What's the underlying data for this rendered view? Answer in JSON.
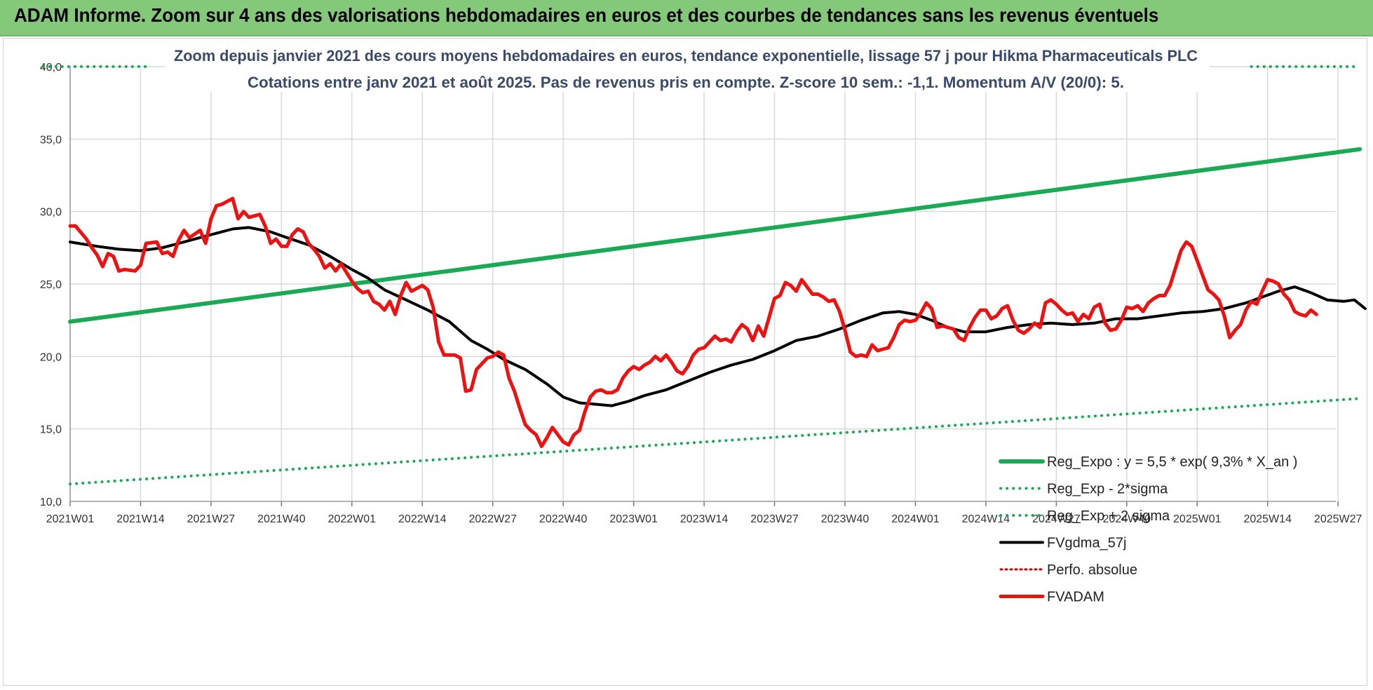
{
  "banner": {
    "title": "ADAM Informe. Zoom sur 4 ans des valorisations hebdomadaires en euros et des courbes de tendances sans les revenus éventuels"
  },
  "colors": {
    "trend": "#1aaa55",
    "smooth": "#000000",
    "price": "#ee1111",
    "perf": "#cc0000",
    "title_text": "#3a4a6b",
    "grid": "#d9d9d9",
    "banner": "#84c97a"
  },
  "chart_data": {
    "type": "line",
    "title": "Zoom depuis janvier 2021 des cours moyens hebdomadaires en euros, tendance exponentielle, lissage 57 j pour Hikma Pharmaceuticals PLC",
    "subtitle": "Cotations entre janv 2021 et août 2025.  Pas de revenus pris en compte. Z-score 10 sem.: -1,1. Momentum A/V (20/0): 5.",
    "xlabel": "",
    "ylabel": "",
    "ylim": [
      10,
      40
    ],
    "yticks": [
      "10,0",
      "15,0",
      "20,0",
      "25,0",
      "30,0",
      "35,0",
      "40,0"
    ],
    "xticks": [
      "2021W01",
      "2021W14",
      "2021W27",
      "2021W40",
      "2022W01",
      "2022W14",
      "2022W27",
      "2022W40",
      "2023W01",
      "2023W14",
      "2023W27",
      "2023W40",
      "2024W01",
      "2024W14",
      "2024W27",
      "2024W40",
      "2025W01",
      "2025W14",
      "2025W27"
    ],
    "grid": true,
    "legend_position": "bottom-right",
    "n_weeks": 239,
    "legend": [
      "Reg_Expo : y = 5,5 * exp( 9,3% *  X_an )",
      "Reg_Exp - 2*sigma",
      "Reg_Exp + 2 sigma",
      "FVgdma_57j",
      "Perfo. absolue",
      "FVADAM"
    ],
    "series": [
      {
        "name": "Reg_Expo : y = 5,5 * exp( 9,3% *  X_an )",
        "style": "solid",
        "points": [
          [
            0,
            22.4
          ],
          [
            238,
            34.3
          ]
        ]
      },
      {
        "name": "Reg_Exp - 2*sigma",
        "style": "dotted",
        "points": [
          [
            0,
            11.2
          ],
          [
            238,
            17.1
          ]
        ]
      },
      {
        "name": "Reg_Exp + 2 sigma",
        "style": "dotted",
        "points": [
          [
            0,
            40.0
          ],
          [
            238,
            40.0
          ]
        ]
      },
      {
        "name": "FVgdma_57j",
        "style": "solid",
        "points": [
          [
            0,
            27.9
          ],
          [
            5,
            27.6
          ],
          [
            9,
            27.4
          ],
          [
            13,
            27.3
          ],
          [
            17,
            27.5
          ],
          [
            21,
            27.9
          ],
          [
            26,
            28.4
          ],
          [
            30,
            28.8
          ],
          [
            33,
            28.9
          ],
          [
            37,
            28.6
          ],
          [
            40,
            28.2
          ],
          [
            44,
            27.7
          ],
          [
            48,
            26.9
          ],
          [
            52,
            26.0
          ],
          [
            55,
            25.4
          ],
          [
            58,
            24.6
          ],
          [
            62,
            23.9
          ],
          [
            66,
            23.2
          ],
          [
            70,
            22.4
          ],
          [
            74,
            21.1
          ],
          [
            77,
            20.5
          ],
          [
            80,
            19.8
          ],
          [
            84,
            19.1
          ],
          [
            88,
            18.1
          ],
          [
            91,
            17.2
          ],
          [
            94,
            16.8
          ],
          [
            97,
            16.7
          ],
          [
            100,
            16.6
          ],
          [
            103,
            16.9
          ],
          [
            106,
            17.3
          ],
          [
            110,
            17.7
          ],
          [
            114,
            18.3
          ],
          [
            118,
            18.9
          ],
          [
            122,
            19.4
          ],
          [
            126,
            19.8
          ],
          [
            130,
            20.4
          ],
          [
            134,
            21.1
          ],
          [
            138,
            21.4
          ],
          [
            142,
            21.9
          ],
          [
            146,
            22.5
          ],
          [
            150,
            23.0
          ],
          [
            153,
            23.1
          ],
          [
            156,
            22.9
          ],
          [
            159,
            22.5
          ],
          [
            162,
            22.0
          ],
          [
            165,
            21.7
          ],
          [
            169,
            21.7
          ],
          [
            173,
            22.0
          ],
          [
            177,
            22.2
          ],
          [
            181,
            22.3
          ],
          [
            185,
            22.2
          ],
          [
            189,
            22.3
          ],
          [
            193,
            22.6
          ],
          [
            197,
            22.6
          ],
          [
            201,
            22.8
          ],
          [
            205,
            23.0
          ],
          [
            209,
            23.1
          ],
          [
            213,
            23.3
          ],
          [
            217,
            23.7
          ],
          [
            220,
            24.1
          ],
          [
            223,
            24.5
          ],
          [
            226,
            24.8
          ],
          [
            229,
            24.4
          ],
          [
            232,
            23.9
          ],
          [
            235,
            23.8
          ],
          [
            237,
            23.9
          ],
          [
            239,
            23.3
          ]
        ]
      },
      {
        "name": "Perfo. absolue",
        "style": "dotted",
        "points": []
      },
      {
        "name": "FVADAM",
        "style": "solid",
        "points": [
          [
            0,
            29.0
          ],
          [
            1,
            29.0
          ],
          [
            3,
            28.1
          ],
          [
            4,
            27.5
          ],
          [
            5,
            27.0
          ],
          [
            6,
            26.2
          ],
          [
            7,
            27.1
          ],
          [
            8,
            26.9
          ],
          [
            9,
            25.9
          ],
          [
            10,
            26.0
          ],
          [
            12,
            25.9
          ],
          [
            13,
            26.3
          ],
          [
            14,
            27.8
          ],
          [
            16,
            27.9
          ],
          [
            17,
            27.1
          ],
          [
            18,
            27.2
          ],
          [
            19,
            26.9
          ],
          [
            20,
            28.0
          ],
          [
            21,
            28.7
          ],
          [
            22,
            28.2
          ],
          [
            24,
            28.7
          ],
          [
            25,
            27.8
          ],
          [
            26,
            29.5
          ],
          [
            27,
            30.4
          ],
          [
            28,
            30.5
          ],
          [
            29,
            30.7
          ],
          [
            30,
            30.9
          ],
          [
            31,
            29.5
          ],
          [
            32,
            30.0
          ],
          [
            33,
            29.6
          ],
          [
            35,
            29.8
          ],
          [
            36,
            29.0
          ],
          [
            37,
            27.8
          ],
          [
            38,
            28.1
          ],
          [
            39,
            27.6
          ],
          [
            40,
            27.6
          ],
          [
            41,
            28.4
          ],
          [
            42,
            28.8
          ],
          [
            43,
            28.6
          ],
          [
            44,
            27.8
          ],
          [
            45,
            27.4
          ],
          [
            46,
            26.9
          ],
          [
            47,
            26.1
          ],
          [
            48,
            26.4
          ],
          [
            49,
            25.9
          ],
          [
            50,
            26.4
          ],
          [
            51,
            25.8
          ],
          [
            52,
            25.2
          ],
          [
            53,
            24.7
          ],
          [
            54,
            24.4
          ],
          [
            55,
            24.5
          ],
          [
            56,
            23.8
          ],
          [
            57,
            23.6
          ],
          [
            58,
            23.2
          ],
          [
            59,
            23.8
          ],
          [
            60,
            22.9
          ],
          [
            61,
            24.2
          ],
          [
            62,
            25.1
          ],
          [
            63,
            24.5
          ],
          [
            65,
            24.9
          ],
          [
            66,
            24.6
          ],
          [
            67,
            23.4
          ],
          [
            68,
            21.0
          ],
          [
            69,
            20.1
          ],
          [
            70,
            20.1
          ],
          [
            71,
            20.1
          ],
          [
            72,
            19.9
          ],
          [
            73,
            17.6
          ],
          [
            74,
            17.7
          ],
          [
            75,
            19.1
          ],
          [
            76,
            19.5
          ],
          [
            77,
            19.9
          ],
          [
            78,
            20.0
          ],
          [
            79,
            20.3
          ],
          [
            80,
            20.1
          ],
          [
            81,
            18.5
          ],
          [
            82,
            17.6
          ],
          [
            83,
            16.4
          ],
          [
            84,
            15.3
          ],
          [
            85,
            14.9
          ],
          [
            86,
            14.6
          ],
          [
            87,
            13.8
          ],
          [
            88,
            14.4
          ],
          [
            89,
            15.1
          ],
          [
            90,
            14.6
          ],
          [
            91,
            14.1
          ],
          [
            92,
            13.9
          ],
          [
            93,
            14.6
          ],
          [
            94,
            14.9
          ],
          [
            95,
            16.2
          ],
          [
            96,
            17.2
          ],
          [
            97,
            17.6
          ],
          [
            98,
            17.7
          ],
          [
            99,
            17.5
          ],
          [
            100,
            17.5
          ],
          [
            101,
            17.7
          ],
          [
            102,
            18.5
          ],
          [
            103,
            19.0
          ],
          [
            104,
            19.3
          ],
          [
            105,
            19.1
          ],
          [
            106,
            19.4
          ],
          [
            107,
            19.6
          ],
          [
            108,
            20.0
          ],
          [
            109,
            19.7
          ],
          [
            110,
            20.1
          ],
          [
            111,
            19.6
          ],
          [
            112,
            19.0
          ],
          [
            113,
            18.8
          ],
          [
            114,
            19.3
          ],
          [
            115,
            20.1
          ],
          [
            116,
            20.5
          ],
          [
            117,
            20.6
          ],
          [
            118,
            21.0
          ],
          [
            119,
            21.4
          ],
          [
            120,
            21.1
          ],
          [
            121,
            21.2
          ],
          [
            122,
            21.0
          ],
          [
            123,
            21.7
          ],
          [
            124,
            22.2
          ],
          [
            125,
            21.9
          ],
          [
            126,
            21.1
          ],
          [
            127,
            22.1
          ],
          [
            128,
            21.4
          ],
          [
            129,
            22.7
          ],
          [
            130,
            24.0
          ],
          [
            131,
            24.2
          ],
          [
            132,
            25.1
          ],
          [
            133,
            24.9
          ],
          [
            134,
            24.5
          ],
          [
            135,
            25.3
          ],
          [
            136,
            24.8
          ],
          [
            137,
            24.3
          ],
          [
            138,
            24.3
          ],
          [
            139,
            24.1
          ],
          [
            140,
            23.8
          ],
          [
            141,
            23.9
          ],
          [
            142,
            23.1
          ],
          [
            143,
            21.8
          ],
          [
            144,
            20.3
          ],
          [
            145,
            20.0
          ],
          [
            146,
            20.1
          ],
          [
            147,
            20.0
          ],
          [
            148,
            20.8
          ],
          [
            149,
            20.4
          ],
          [
            150,
            20.5
          ],
          [
            151,
            20.6
          ],
          [
            152,
            21.3
          ],
          [
            153,
            22.2
          ],
          [
            154,
            22.5
          ],
          [
            155,
            22.4
          ],
          [
            156,
            22.5
          ],
          [
            157,
            23.0
          ],
          [
            158,
            23.7
          ],
          [
            159,
            23.3
          ],
          [
            160,
            22.0
          ],
          [
            161,
            22.1
          ],
          [
            162,
            22.0
          ],
          [
            163,
            21.9
          ],
          [
            164,
            21.3
          ],
          [
            165,
            21.1
          ],
          [
            166,
            22.0
          ],
          [
            167,
            22.7
          ],
          [
            168,
            23.2
          ],
          [
            169,
            23.2
          ],
          [
            170,
            22.6
          ],
          [
            171,
            22.8
          ],
          [
            172,
            23.3
          ],
          [
            173,
            23.5
          ],
          [
            174,
            22.5
          ],
          [
            175,
            21.8
          ],
          [
            176,
            21.6
          ],
          [
            177,
            21.9
          ],
          [
            178,
            22.3
          ],
          [
            179,
            22.0
          ],
          [
            180,
            23.7
          ],
          [
            181,
            23.9
          ],
          [
            182,
            23.6
          ],
          [
            183,
            23.2
          ],
          [
            184,
            22.9
          ],
          [
            185,
            23.0
          ],
          [
            186,
            22.4
          ],
          [
            187,
            22.9
          ],
          [
            188,
            22.6
          ],
          [
            189,
            23.4
          ],
          [
            190,
            23.6
          ],
          [
            191,
            22.3
          ],
          [
            192,
            21.8
          ],
          [
            193,
            21.9
          ],
          [
            194,
            22.5
          ],
          [
            195,
            23.4
          ],
          [
            196,
            23.3
          ],
          [
            197,
            23.5
          ],
          [
            198,
            23.1
          ],
          [
            199,
            23.7
          ],
          [
            200,
            24.0
          ],
          [
            201,
            24.2
          ],
          [
            202,
            24.2
          ],
          [
            203,
            24.9
          ],
          [
            204,
            26.1
          ],
          [
            205,
            27.3
          ],
          [
            206,
            27.9
          ],
          [
            207,
            27.6
          ],
          [
            208,
            26.6
          ],
          [
            209,
            25.6
          ],
          [
            210,
            24.6
          ],
          [
            211,
            24.3
          ],
          [
            212,
            23.9
          ],
          [
            213,
            22.8
          ],
          [
            214,
            21.3
          ],
          [
            215,
            21.8
          ],
          [
            216,
            22.2
          ],
          [
            217,
            23.2
          ],
          [
            218,
            23.8
          ],
          [
            219,
            23.6
          ],
          [
            220,
            24.5
          ],
          [
            221,
            25.3
          ],
          [
            222,
            25.2
          ],
          [
            223,
            25.0
          ],
          [
            224,
            24.3
          ],
          [
            225,
            23.9
          ],
          [
            226,
            23.1
          ],
          [
            227,
            22.9
          ],
          [
            228,
            22.8
          ],
          [
            229,
            23.2
          ],
          [
            230,
            22.9
          ]
        ]
      }
    ]
  }
}
